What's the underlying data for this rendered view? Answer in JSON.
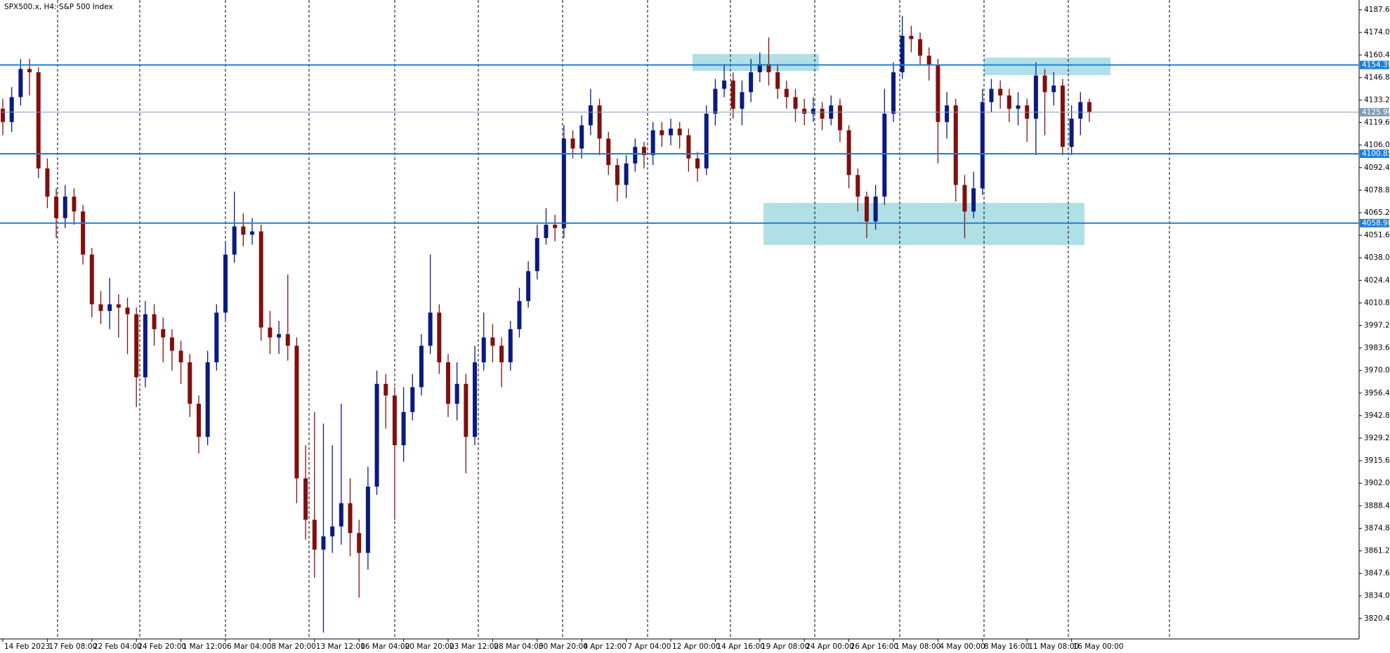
{
  "chart_data": {
    "type": "candlestick",
    "title": "SPX500.x, H4:  S&P 500 Index",
    "up_color": "#0b1a80",
    "down_color": "#801010",
    "level_color": "#1e7fd8",
    "bid_color": "#7f9cb8",
    "ylim": [
      3808.1,
      4193.6
    ],
    "yticks": [
      4187.65,
      4174.05,
      4160.45,
      4146.85,
      4133.25,
      4119.65,
      4106.05,
      4092.45,
      4078.85,
      4065.25,
      4051.65,
      4038.05,
      4024.45,
      4010.85,
      3997.25,
      3983.65,
      3970.05,
      3956.45,
      3942.85,
      3929.25,
      3915.65,
      3902.05,
      3888.45,
      3874.85,
      3861.25,
      3847.65,
      3834.05,
      3820.45
    ],
    "levels": [
      4154.39,
      4100.85,
      4058.98
    ],
    "bid": {
      "value": 4125.9,
      "label": "4125.90"
    },
    "categories": [
      "14 Feb 2023",
      null,
      null,
      null,
      null,
      "17 Feb 08:00",
      null,
      null,
      null,
      null,
      "22 Feb 04:00",
      null,
      null,
      null,
      null,
      "24 Feb 20:00",
      null,
      null,
      null,
      null,
      "1 Mar 12:00",
      null,
      null,
      null,
      null,
      "6 Mar 04:00",
      null,
      null,
      null,
      null,
      "8 Mar 20:00",
      null,
      null,
      null,
      null,
      "13 Mar 12:00",
      null,
      null,
      null,
      null,
      "16 Mar 04:00",
      null,
      null,
      null,
      null,
      "20 Mar 20:00",
      null,
      null,
      null,
      null,
      "23 Mar 12:00",
      null,
      null,
      null,
      null,
      "28 Mar 04:00",
      null,
      null,
      null,
      null,
      "30 Mar 20:00",
      null,
      null,
      null,
      null,
      "4 Apr 12:00",
      null,
      null,
      null,
      null,
      "7 Apr 04:00",
      null,
      null,
      null,
      null,
      "12 Apr 00:00",
      null,
      null,
      null,
      null,
      "14 Apr 16:00",
      null,
      null,
      null,
      null,
      "19 Apr 08:00",
      null,
      null,
      null,
      null,
      "24 Apr 00:00",
      null,
      null,
      null,
      null,
      "26 Apr 16:00",
      null,
      null,
      null,
      null,
      "1 May 08:00",
      null,
      null,
      null,
      null,
      "4 May 00:00",
      null,
      null,
      null,
      null,
      "8 May 16:00",
      null,
      null,
      null,
      null,
      "11 May 08:00",
      null,
      null,
      null,
      null,
      "16 May 00:00",
      null,
      null
    ],
    "open": [
      4128,
      4120,
      4135,
      4152,
      4150,
      4092,
      4075,
      4062,
      4075,
      4066,
      4040,
      4010,
      4006,
      4010,
      4008,
      4004,
      3966,
      4004,
      3995,
      3990,
      3982,
      3975,
      3950,
      3930,
      3975,
      4005,
      4040,
      4057,
      4052,
      4054,
      3996,
      3990,
      3992,
      3985,
      3905,
      3880,
      3862,
      3870,
      3876,
      3890,
      3872,
      3860,
      3900,
      3962,
      3955,
      3925,
      3945,
      3960,
      3985,
      4005,
      3975,
      3950,
      3962,
      3930,
      3975,
      3990,
      3985,
      3975,
      3995,
      4012,
      4030,
      4050,
      4058,
      4056,
      4110,
      4104,
      4118,
      4130,
      4110,
      4094,
      4082,
      4095,
      4105,
      4100,
      4115,
      4112,
      4116,
      4112,
      4098,
      4092,
      4125,
      4140,
      4145,
      4128,
      4138,
      4150,
      4155,
      4150,
      4140,
      4135,
      4128,
      4125,
      4128,
      4122,
      4130,
      4115,
      4088,
      4075,
      4060,
      4075,
      4125,
      4150,
      4172,
      4170,
      4160,
      4154,
      4120,
      4130,
      4082,
      4066,
      4080,
      4132,
      4140,
      4136,
      4128,
      4130,
      4122,
      4148,
      4138,
      4142,
      4105,
      4122,
      4132
    ],
    "high": [
      4134,
      4141,
      4158,
      4158,
      4153,
      4098,
      4080,
      4082,
      4080,
      4070,
      4044,
      4018,
      4026,
      4016,
      4014,
      4008,
      4012,
      4010,
      4002,
      3995,
      3988,
      3980,
      3955,
      3982,
      4010,
      4048,
      4078,
      4065,
      4062,
      4058,
      4006,
      4000,
      4028,
      3990,
      3925,
      3945,
      3938,
      3925,
      3950,
      3905,
      3880,
      3912,
      3970,
      3968,
      3960,
      3960,
      3968,
      3992,
      4040,
      4010,
      3980,
      3975,
      3968,
      3985,
      4005,
      3998,
      3990,
      4000,
      4020,
      4036,
      4058,
      4068,
      4064,
      4118,
      4115,
      4124,
      4140,
      4134,
      4114,
      4098,
      4100,
      4110,
      4108,
      4120,
      4120,
      4122,
      4120,
      4116,
      4102,
      4130,
      4146,
      4155,
      4150,
      4145,
      4158,
      4162,
      4171,
      4155,
      4145,
      4140,
      4134,
      4135,
      4132,
      4136,
      4134,
      4118,
      4092,
      4078,
      4082,
      4140,
      4156,
      4184,
      4178,
      4174,
      4165,
      4158,
      4138,
      4134,
      4088,
      4090,
      4140,
      4146,
      4145,
      4140,
      4138,
      4134,
      4156,
      4152,
      4150,
      4146,
      4130,
      4138,
      4134
    ],
    "low": [
      4112,
      4114,
      4130,
      4136,
      4086,
      4068,
      4050,
      4056,
      4058,
      4034,
      4002,
      3998,
      3995,
      3990,
      3980,
      3948,
      3960,
      3985,
      3975,
      3970,
      3962,
      3942,
      3920,
      3925,
      3970,
      4000,
      4035,
      4045,
      4046,
      3988,
      3980,
      3980,
      3976,
      3890,
      3868,
      3845,
      3812,
      3860,
      3865,
      3858,
      3833,
      3850,
      3895,
      3935,
      3880,
      3915,
      3940,
      3955,
      3980,
      3968,
      3942,
      3940,
      3908,
      3925,
      3970,
      3975,
      3960,
      3970,
      3990,
      4008,
      4025,
      4046,
      4048,
      4050,
      4098,
      4098,
      4112,
      4100,
      4088,
      4072,
      4074,
      4090,
      4092,
      4094,
      4105,
      4106,
      4104,
      4090,
      4084,
      4088,
      4118,
      4135,
      4122,
      4118,
      4132,
      4144,
      4142,
      4134,
      4128,
      4120,
      4118,
      4120,
      4115,
      4118,
      4108,
      4080,
      4066,
      4050,
      4055,
      4070,
      4120,
      4146,
      4162,
      4154,
      4145,
      4095,
      4110,
      4072,
      4050,
      4062,
      4076,
      4126,
      4128,
      4120,
      4118,
      4108,
      4100,
      4112,
      4130,
      4100,
      4100,
      4112,
      4120
    ],
    "close": [
      4120,
      4135,
      4152,
      4150,
      4092,
      4075,
      4062,
      4075,
      4066,
      4040,
      4010,
      4006,
      4010,
      4008,
      4004,
      3966,
      4004,
      3995,
      3990,
      3982,
      3975,
      3950,
      3930,
      3975,
      4005,
      4040,
      4057,
      4052,
      4054,
      3996,
      3990,
      3992,
      3985,
      3905,
      3880,
      3862,
      3870,
      3876,
      3890,
      3872,
      3860,
      3900,
      3962,
      3955,
      3925,
      3945,
      3960,
      3985,
      4005,
      3975,
      3950,
      3962,
      3930,
      3975,
      3990,
      3985,
      3975,
      3995,
      4012,
      4030,
      4050,
      4058,
      4056,
      4110,
      4104,
      4118,
      4130,
      4110,
      4094,
      4082,
      4095,
      4105,
      4100,
      4115,
      4112,
      4116,
      4112,
      4098,
      4092,
      4125,
      4140,
      4145,
      4128,
      4138,
      4150,
      4155,
      4150,
      4140,
      4135,
      4128,
      4125,
      4128,
      4122,
      4130,
      4115,
      4088,
      4075,
      4060,
      4075,
      4125,
      4150,
      4172,
      4170,
      4160,
      4154,
      4120,
      4130,
      4082,
      4066,
      4080,
      4132,
      4140,
      4136,
      4128,
      4130,
      4122,
      4148,
      4138,
      4142,
      4105,
      4122,
      4132,
      4126
    ]
  }
}
